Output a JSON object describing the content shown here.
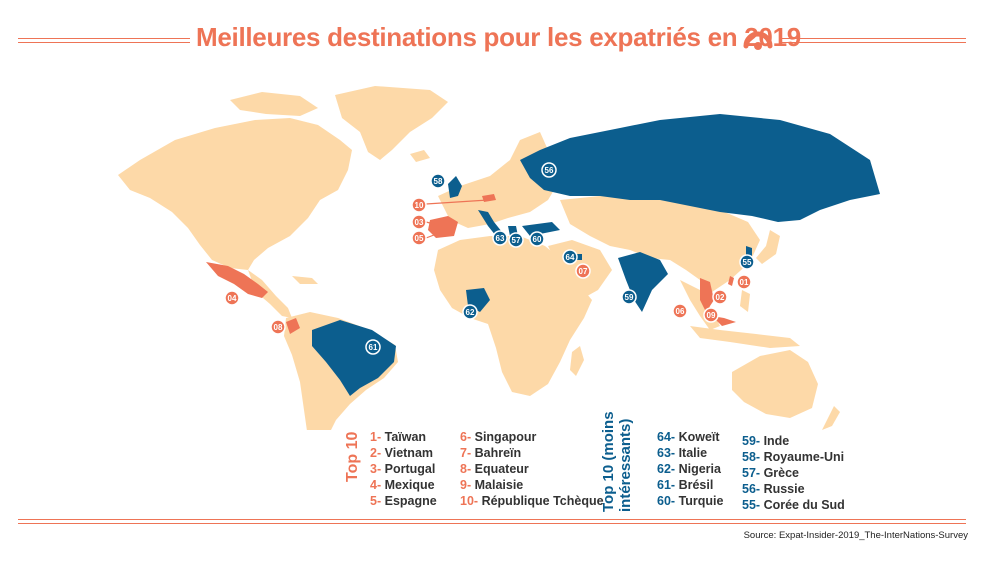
{
  "title": "Meilleures destinations pour les expatriés en 2019",
  "colors": {
    "accent": "#ee7456",
    "blue": "#0c5e8e",
    "land": "#fdd9a8"
  },
  "top10": {
    "label": "Top 10",
    "col1": [
      {
        "num": "1-",
        "name": "Taïwan"
      },
      {
        "num": "2-",
        "name": "Vietnam"
      },
      {
        "num": "3-",
        "name": "Portugal"
      },
      {
        "num": "4-",
        "name": "Mexique"
      },
      {
        "num": "5-",
        "name": "Espagne"
      }
    ],
    "col2": [
      {
        "num": "6-",
        "name": "Singapour"
      },
      {
        "num": "7-",
        "name": "Bahreïn"
      },
      {
        "num": "8-",
        "name": "Equateur"
      },
      {
        "num": "9-",
        "name": "Malaisie"
      },
      {
        "num": "10-",
        "name": "République Tchèque"
      }
    ]
  },
  "bottom10": {
    "label_line1": "Top 10 (moins",
    "label_line2": "intéressants)",
    "col1": [
      {
        "num": "64-",
        "name": "Koweït"
      },
      {
        "num": "63-",
        "name": "Italie"
      },
      {
        "num": "62-",
        "name": "Nigeria"
      },
      {
        "num": "61-",
        "name": "Brésil"
      },
      {
        "num": "60-",
        "name": "Turquie"
      }
    ],
    "col2": [
      {
        "num": "59-",
        "name": "Inde"
      },
      {
        "num": "58-",
        "name": "Royaume-Uni"
      },
      {
        "num": "57-",
        "name": "Grèce"
      },
      {
        "num": "56-",
        "name": "Russie"
      },
      {
        "num": "55-",
        "name": "Corée du Sud"
      }
    ]
  },
  "markers": {
    "m01": "01",
    "m02": "02",
    "m03": "03",
    "m04": "04",
    "m05": "05",
    "m06": "06",
    "m07": "07",
    "m08": "08",
    "m09": "09",
    "m10": "10",
    "m55": "55",
    "m56": "56",
    "m57": "57",
    "m58": "58",
    "m59": "59",
    "m60": "60",
    "m61": "61",
    "m62": "62",
    "m63": "63",
    "m64": "64"
  },
  "source": "Source: Expat-Insider-2019_The-InterNations-Survey"
}
